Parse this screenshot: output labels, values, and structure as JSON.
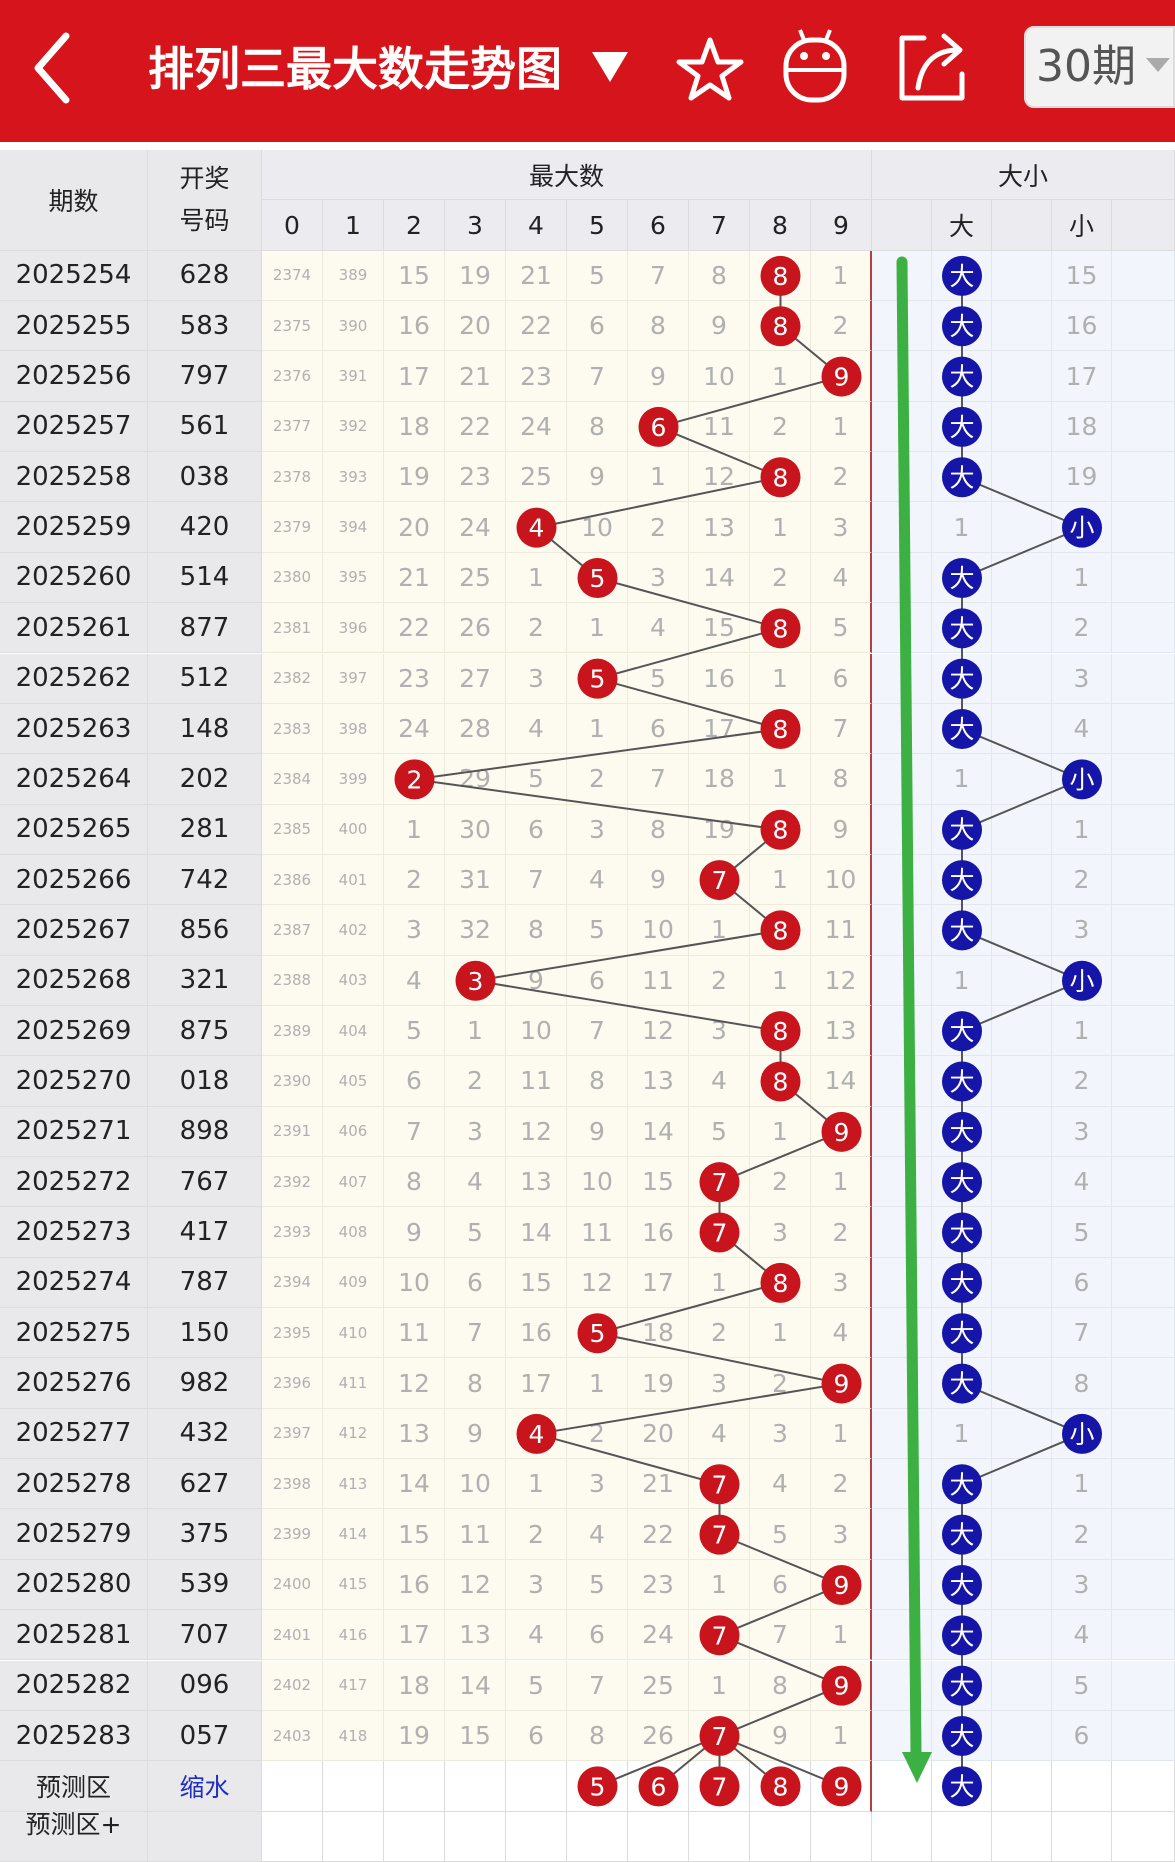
{
  "header": {
    "title": "排列三最大数走势图",
    "period_select": "30期",
    "icons": [
      "back-arrow-icon",
      "dropdown-triangle-icon",
      "star-icon",
      "robot-icon",
      "share-icon"
    ]
  },
  "table": {
    "head": {
      "period": "期数",
      "draw_line1": "开奖",
      "draw_line2": "号码",
      "max_group": "最大数",
      "size_group": "大小",
      "digits": [
        "0",
        "1",
        "2",
        "3",
        "4",
        "5",
        "6",
        "7",
        "8",
        "9"
      ],
      "size_cols": [
        "",
        "大",
        "",
        "小"
      ]
    },
    "rows": [
      {
        "period": "2025254",
        "draw": "628",
        "max": 8,
        "omit": [
          "2374",
          "389",
          "15",
          "19",
          "21",
          "5",
          "7",
          "8",
          "8",
          "1"
        ],
        "big": "大",
        "small": "15"
      },
      {
        "period": "2025255",
        "draw": "583",
        "max": 8,
        "omit": [
          "2375",
          "390",
          "16",
          "20",
          "22",
          "6",
          "8",
          "9",
          "8",
          "2"
        ],
        "big": "大",
        "small": "16"
      },
      {
        "period": "2025256",
        "draw": "797",
        "max": 9,
        "omit": [
          "2376",
          "391",
          "17",
          "21",
          "23",
          "7",
          "9",
          "10",
          "1",
          "9"
        ],
        "big": "大",
        "small": "17"
      },
      {
        "period": "2025257",
        "draw": "561",
        "max": 6,
        "omit": [
          "2377",
          "392",
          "18",
          "22",
          "24",
          "8",
          "6",
          "11",
          "2",
          "1"
        ],
        "big": "大",
        "small": "18"
      },
      {
        "period": "2025258",
        "draw": "038",
        "max": 8,
        "omit": [
          "2378",
          "393",
          "19",
          "23",
          "25",
          "9",
          "1",
          "12",
          "8",
          "2"
        ],
        "big": "大",
        "small": "19"
      },
      {
        "period": "2025259",
        "draw": "420",
        "max": 4,
        "omit": [
          "2379",
          "394",
          "20",
          "24",
          "4",
          "10",
          "2",
          "13",
          "1",
          "3"
        ],
        "big": "1",
        "small": "小"
      },
      {
        "period": "2025260",
        "draw": "514",
        "max": 5,
        "omit": [
          "2380",
          "395",
          "21",
          "25",
          "1",
          "5",
          "3",
          "14",
          "2",
          "4"
        ],
        "big": "大",
        "small": "1"
      },
      {
        "period": "2025261",
        "draw": "877",
        "max": 8,
        "omit": [
          "2381",
          "396",
          "22",
          "26",
          "2",
          "1",
          "4",
          "15",
          "8",
          "5"
        ],
        "big": "大",
        "small": "2"
      },
      {
        "period": "2025262",
        "draw": "512",
        "max": 5,
        "omit": [
          "2382",
          "397",
          "23",
          "27",
          "3",
          "5",
          "5",
          "16",
          "1",
          "6"
        ],
        "big": "大",
        "small": "3"
      },
      {
        "period": "2025263",
        "draw": "148",
        "max": 8,
        "omit": [
          "2383",
          "398",
          "24",
          "28",
          "4",
          "1",
          "6",
          "17",
          "8",
          "7"
        ],
        "big": "大",
        "small": "4"
      },
      {
        "period": "2025264",
        "draw": "202",
        "max": 2,
        "omit": [
          "2384",
          "399",
          "2",
          "29",
          "5",
          "2",
          "7",
          "18",
          "1",
          "8"
        ],
        "big": "1",
        "small": "小"
      },
      {
        "period": "2025265",
        "draw": "281",
        "max": 8,
        "omit": [
          "2385",
          "400",
          "1",
          "30",
          "6",
          "3",
          "8",
          "19",
          "8",
          "9"
        ],
        "big": "大",
        "small": "1"
      },
      {
        "period": "2025266",
        "draw": "742",
        "max": 7,
        "omit": [
          "2386",
          "401",
          "2",
          "31",
          "7",
          "4",
          "9",
          "7",
          "1",
          "10"
        ],
        "big": "大",
        "small": "2"
      },
      {
        "period": "2025267",
        "draw": "856",
        "max": 8,
        "omit": [
          "2387",
          "402",
          "3",
          "32",
          "8",
          "5",
          "10",
          "1",
          "8",
          "11"
        ],
        "big": "大",
        "small": "3"
      },
      {
        "period": "2025268",
        "draw": "321",
        "max": 3,
        "omit": [
          "2388",
          "403",
          "4",
          "3",
          "9",
          "6",
          "11",
          "2",
          "1",
          "12"
        ],
        "big": "1",
        "small": "小"
      },
      {
        "period": "2025269",
        "draw": "875",
        "max": 8,
        "omit": [
          "2389",
          "404",
          "5",
          "1",
          "10",
          "7",
          "12",
          "3",
          "8",
          "13"
        ],
        "big": "大",
        "small": "1"
      },
      {
        "period": "2025270",
        "draw": "018",
        "max": 8,
        "omit": [
          "2390",
          "405",
          "6",
          "2",
          "11",
          "8",
          "13",
          "4",
          "8",
          "14"
        ],
        "big": "大",
        "small": "2"
      },
      {
        "period": "2025271",
        "draw": "898",
        "max": 9,
        "omit": [
          "2391",
          "406",
          "7",
          "3",
          "12",
          "9",
          "14",
          "5",
          "1",
          "9"
        ],
        "big": "大",
        "small": "3"
      },
      {
        "period": "2025272",
        "draw": "767",
        "max": 7,
        "omit": [
          "2392",
          "407",
          "8",
          "4",
          "13",
          "10",
          "15",
          "7",
          "2",
          "1"
        ],
        "big": "大",
        "small": "4"
      },
      {
        "period": "2025273",
        "draw": "417",
        "max": 7,
        "omit": [
          "2393",
          "408",
          "9",
          "5",
          "14",
          "11",
          "16",
          "7",
          "3",
          "2"
        ],
        "big": "大",
        "small": "5"
      },
      {
        "period": "2025274",
        "draw": "787",
        "max": 8,
        "omit": [
          "2394",
          "409",
          "10",
          "6",
          "15",
          "12",
          "17",
          "1",
          "8",
          "3"
        ],
        "big": "大",
        "small": "6"
      },
      {
        "period": "2025275",
        "draw": "150",
        "max": 5,
        "omit": [
          "2395",
          "410",
          "11",
          "7",
          "16",
          "5",
          "18",
          "2",
          "1",
          "4"
        ],
        "big": "大",
        "small": "7"
      },
      {
        "period": "2025276",
        "draw": "982",
        "max": 9,
        "omit": [
          "2396",
          "411",
          "12",
          "8",
          "17",
          "1",
          "19",
          "3",
          "2",
          "9"
        ],
        "big": "大",
        "small": "8"
      },
      {
        "period": "2025277",
        "draw": "432",
        "max": 4,
        "omit": [
          "2397",
          "412",
          "13",
          "9",
          "4",
          "2",
          "20",
          "4",
          "3",
          "1"
        ],
        "big": "1",
        "small": "小"
      },
      {
        "period": "2025278",
        "draw": "627",
        "max": 7,
        "omit": [
          "2398",
          "413",
          "14",
          "10",
          "1",
          "3",
          "21",
          "7",
          "4",
          "2"
        ],
        "big": "大",
        "small": "1"
      },
      {
        "period": "2025279",
        "draw": "375",
        "max": 7,
        "omit": [
          "2399",
          "414",
          "15",
          "11",
          "2",
          "4",
          "22",
          "7",
          "5",
          "3"
        ],
        "big": "大",
        "small": "2"
      },
      {
        "period": "2025280",
        "draw": "539",
        "max": 9,
        "omit": [
          "2400",
          "415",
          "16",
          "12",
          "3",
          "5",
          "23",
          "1",
          "6",
          "9"
        ],
        "big": "大",
        "small": "3"
      },
      {
        "period": "2025281",
        "draw": "707",
        "max": 7,
        "omit": [
          "2401",
          "416",
          "17",
          "13",
          "4",
          "6",
          "24",
          "7",
          "7",
          "1"
        ],
        "big": "大",
        "small": "4"
      },
      {
        "period": "2025282",
        "draw": "096",
        "max": 9,
        "omit": [
          "2402",
          "417",
          "18",
          "14",
          "5",
          "7",
          "25",
          "1",
          "8",
          "9"
        ],
        "big": "大",
        "small": "5"
      },
      {
        "period": "2025283",
        "draw": "057",
        "max": 7,
        "omit": [
          "2403",
          "418",
          "19",
          "15",
          "6",
          "8",
          "26",
          "7",
          "9",
          "1"
        ],
        "big": "大",
        "small": "6"
      }
    ],
    "prediction": {
      "label": "预测区",
      "shrink": "缩水",
      "balls": [
        "5",
        "6",
        "7",
        "8",
        "9"
      ],
      "size": "大"
    },
    "prediction_plus": {
      "label": "预测区+"
    }
  },
  "colors": {
    "header_red": "#d6141b",
    "ball_red": "#c8141c",
    "ball_blue": "#1515a8",
    "trend_green": "#3cb043",
    "cell_cream": "#fdfbef",
    "side_gray": "#e9e9ec"
  }
}
